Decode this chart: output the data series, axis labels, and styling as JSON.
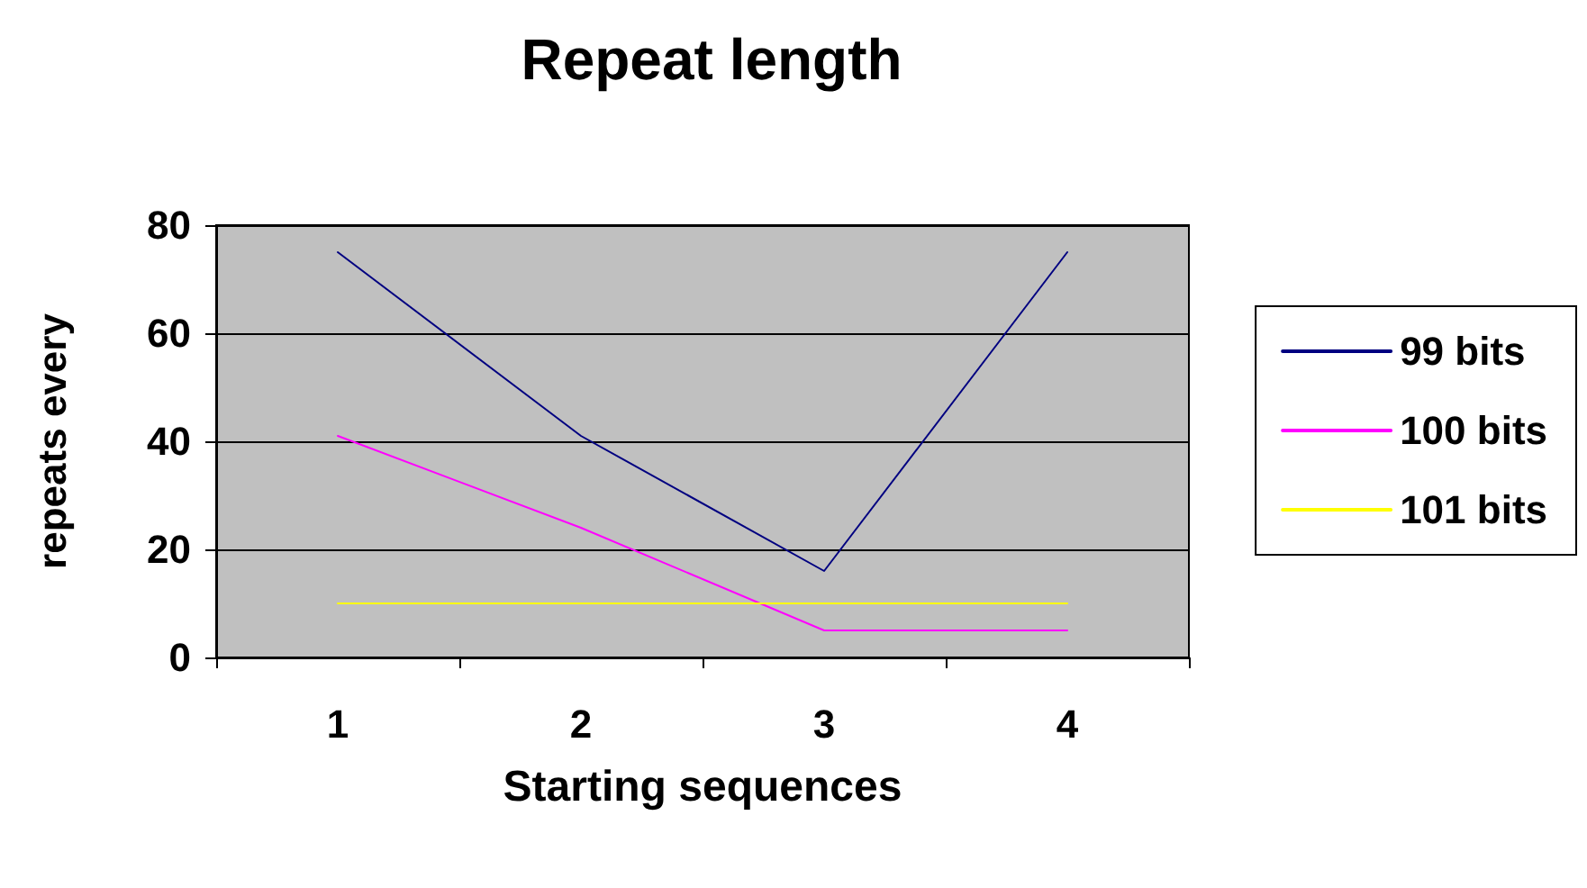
{
  "chart_data": {
    "type": "line",
    "title": "Repeat length",
    "xlabel": "Starting sequences",
    "ylabel": "repeats every",
    "categories": [
      "1",
      "2",
      "3",
      "4"
    ],
    "series": [
      {
        "name": "99 bits",
        "color": "#000080",
        "values": [
          75,
          41,
          16,
          75
        ]
      },
      {
        "name": "100 bits",
        "color": "#ff00ff",
        "values": [
          41,
          24,
          5,
          5
        ]
      },
      {
        "name": "101 bits",
        "color": "#ffff00",
        "values": [
          10,
          10,
          10,
          10
        ]
      }
    ],
    "ylim": [
      0,
      80
    ],
    "yticks": [
      0,
      20,
      40,
      60,
      80
    ],
    "grid": "y",
    "legend": "right",
    "marker": "none",
    "line_style": "solid"
  }
}
